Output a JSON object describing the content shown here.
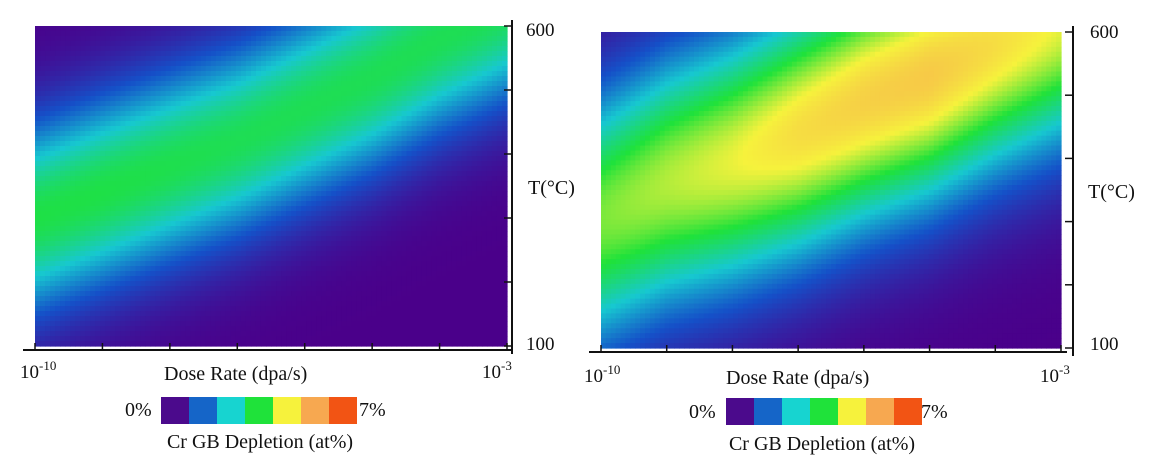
{
  "chart_data": [
    {
      "type": "heatmap",
      "xlabel": "Dose Rate (dpa/s)",
      "ylabel": "T(°C)",
      "x_ticks": [
        {
          "base": "10",
          "exp": "-10"
        },
        {
          "base": "10",
          "exp": "-3"
        }
      ],
      "y_ticks": [
        "600",
        "100"
      ],
      "x_range_log10": [
        -10,
        -3
      ],
      "y_range": [
        100,
        600
      ],
      "z_range_percent": [
        0,
        7
      ],
      "ridge_center_temp": [
        300,
        340,
        380,
        420,
        470,
        520,
        580,
        630
      ],
      "ridge_width_temp": 150,
      "ridge_peak_percent": [
        3.4,
        3.4,
        3.35,
        3.3,
        3.3,
        3.3,
        3.3,
        3.3
      ],
      "colorbar": {
        "min_label": "0%",
        "max_label": "7%",
        "title": "Cr GB Depletion (at%)",
        "colors": [
          "#4B0A8C",
          "#1565C8",
          "#17D4D0",
          "#1FE23A",
          "#F6F23C",
          "#F7A850",
          "#F25414"
        ]
      }
    },
    {
      "type": "heatmap",
      "xlabel": "Dose Rate (dpa/s)",
      "ylabel": "T(°C)",
      "x_ticks": [
        {
          "base": "10",
          "exp": "-10"
        },
        {
          "base": "10",
          "exp": "-3"
        }
      ],
      "y_ticks": [
        "600",
        "100"
      ],
      "x_range_log10": [
        -10,
        -3
      ],
      "y_range": [
        100,
        600
      ],
      "z_range_percent": [
        0,
        7
      ],
      "ridge_center_temp": [
        305,
        360,
        395,
        440,
        490,
        530,
        580,
        620
      ],
      "ridge_width_temp": 200,
      "ridge_peak_percent": [
        4.0,
        4.3,
        4.6,
        5.0,
        5.2,
        5.3,
        5.0,
        4.6
      ],
      "colorbar": {
        "min_label": "0%",
        "max_label": "7%",
        "title": "Cr GB Depletion (at%)",
        "colors": [
          "#4B0A8C",
          "#1565C8",
          "#17D4D0",
          "#1FE23A",
          "#F6F23C",
          "#F7A850",
          "#F25414"
        ]
      }
    }
  ]
}
